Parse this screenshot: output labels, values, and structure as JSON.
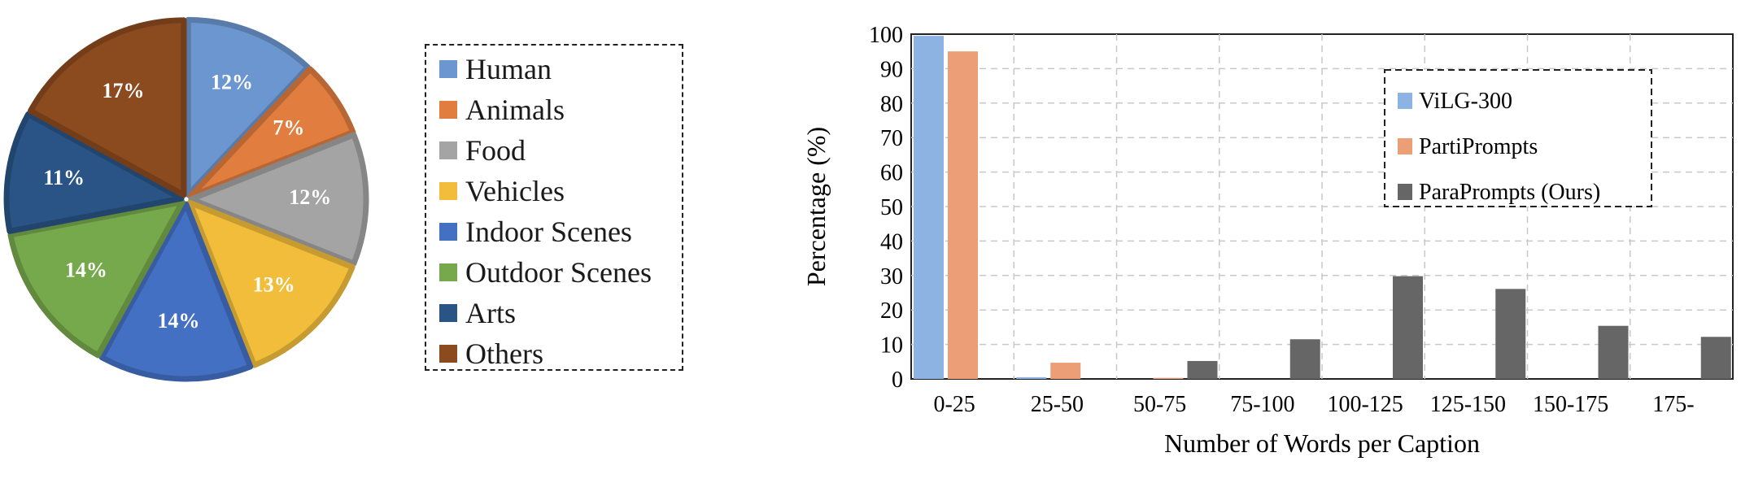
{
  "chart_data": [
    {
      "type": "pie",
      "categories": [
        "Human",
        "Animals",
        "Food",
        "Vehicles",
        "Indoor Scenes",
        "Outdoor Scenes",
        "Arts",
        "Others"
      ],
      "values": [
        12,
        7,
        12,
        13,
        14,
        14,
        11,
        17
      ],
      "labels": [
        "12%",
        "7%",
        "12%",
        "13%",
        "14%",
        "14%",
        "11%",
        "17%"
      ],
      "colors": [
        "#6c96cf",
        "#e07d3f",
        "#a4a4a4",
        "#f2bd3a",
        "#4470c4",
        "#76a84c",
        "#2a5486",
        "#8c4a1f"
      ],
      "legend_position": "right"
    },
    {
      "type": "bar",
      "categories": [
        "0-25",
        "25-50",
        "50-75",
        "75-100",
        "100-125",
        "125-150",
        "150-175",
        "175-"
      ],
      "series": [
        {
          "name": "ViLG-300",
          "color": "#8db3e2",
          "values": [
            99.5,
            0.5,
            0,
            0,
            0,
            0,
            0,
            0
          ]
        },
        {
          "name": "PartiPrompts",
          "color": "#ec9e76",
          "values": [
            95,
            4.7,
            0.3,
            0,
            0,
            0,
            0,
            0
          ]
        },
        {
          "name": "ParaPrompts (Ours)",
          "color": "#666666",
          "values": [
            0,
            0,
            5.2,
            11.5,
            29.8,
            26.1,
            15.4,
            12.2
          ]
        }
      ],
      "xlabel": "Number of Words per Caption",
      "ylabel": "Percentage (%)",
      "ylim": [
        0,
        100
      ],
      "yticks": [
        "0",
        "10",
        "20",
        "30",
        "40",
        "50",
        "60",
        "70",
        "80",
        "90",
        "100"
      ],
      "grid": true,
      "legend_position": "top-right"
    }
  ]
}
